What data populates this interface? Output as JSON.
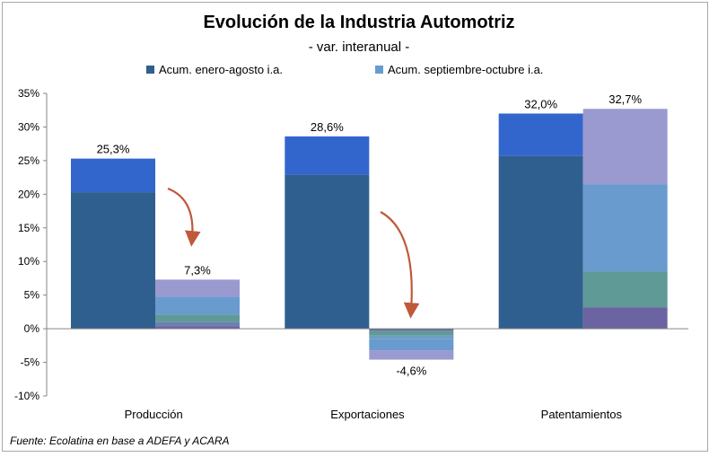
{
  "chart_data": {
    "type": "bar",
    "title": "Evolución de la Industria Automotriz",
    "subtitle": "- var. interanual -",
    "source": "Fuente: Ecolatina en base a ADEFA y ACARA",
    "categories": [
      "Producción",
      "Exportaciones",
      "Patentamientos"
    ],
    "series": [
      {
        "name": "Acum. enero-agosto i.a.",
        "values": [
          25.3,
          28.6,
          32.0
        ],
        "labels": [
          "25,3%",
          "28,6%",
          "32,0%"
        ],
        "color": "#2f5f8f",
        "top_color": "#3366cc"
      },
      {
        "name": "Acum. septiembre-octubre i.a.",
        "values": [
          7.3,
          -4.6,
          32.7
        ],
        "labels": [
          "7,3%",
          "-4,6%",
          "32,7%"
        ],
        "color": "#6a9bcf"
      }
    ],
    "ylim": [
      -10,
      35
    ],
    "yticks": [
      35,
      30,
      25,
      20,
      15,
      10,
      5,
      0,
      -5,
      -10
    ],
    "ytick_labels": [
      "35%",
      "30%",
      "25%",
      "20%",
      "15%",
      "10%",
      "5%",
      "0%",
      "-5%",
      "-10%"
    ],
    "grid": false,
    "legend_position": "top",
    "annotations": [
      "curved arrow from Producción enero-agosto bar to septiembre-octubre bar",
      "curved arrow from Exportaciones enero-agosto bar to septiembre-octubre bar"
    ],
    "colors": {
      "dark_blue": "#2f5f8f",
      "bright_blue": "#3366cc",
      "light_blue": "#6a9bcf",
      "lavender": "#9a9ad0",
      "teal": "#5f9a96",
      "purple": "#6c64a0",
      "arrow": "#c0583a"
    }
  }
}
